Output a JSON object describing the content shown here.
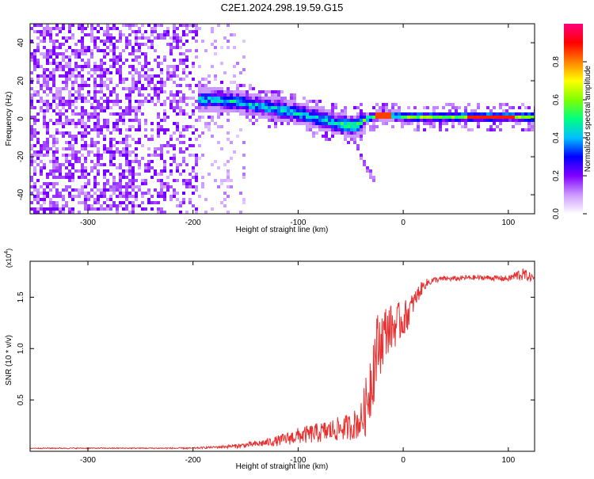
{
  "title": "C2E1.2024.298.19.59.G15",
  "chart_data": [
    {
      "type": "heatmap",
      "xlabel": "Height of straight line (km)",
      "ylabel": "Frequency (Hz)",
      "xlim": [
        -355,
        125
      ],
      "ylim": [
        -50,
        50
      ],
      "xticks": [
        -300,
        -200,
        -100,
        0,
        100
      ],
      "yticks": [
        -40,
        -20,
        0,
        20,
        40
      ],
      "colorbar": {
        "label": "Normalized spectral amplitude",
        "range": [
          0,
          1
        ],
        "ticks": [
          0.0,
          0.2,
          0.4,
          0.6,
          0.8
        ],
        "tick_labels": [
          "0.0",
          "0.2",
          "0.4",
          "0.6",
          "0.8"
        ],
        "colormap": [
          "#ffffff",
          "#cc99ff",
          "#8000ff",
          "#0000ff",
          "#00c0ff",
          "#00ff80",
          "#80ff00",
          "#ffff00",
          "#ff8000",
          "#ff0000",
          "#ff0080"
        ]
      },
      "ridge": {
        "x": [
          -195,
          -175,
          -160,
          -140,
          -120,
          -100,
          -80,
          -60,
          -45,
          -35,
          -20,
          0,
          50,
          100,
          125
        ],
        "y": [
          10,
          10,
          9,
          7,
          5,
          3,
          0,
          -3,
          -4,
          0,
          2,
          1,
          1,
          1,
          1
        ]
      },
      "branch": {
        "x": [
          -45,
          -40,
          -35,
          -30,
          -25
        ],
        "y": [
          -12,
          -20,
          -26,
          -30,
          -34
        ]
      }
    },
    {
      "type": "line",
      "xlabel": "Height of straight line (km)",
      "ylabel": "SNR (10 * v/v)",
      "scale_label": "(x10",
      "scale_exp": "4",
      "scale_close": ")",
      "xlim": [
        -355,
        125
      ],
      "ylim": [
        0,
        1.85
      ],
      "xticks": [
        -300,
        -200,
        -100,
        0,
        100
      ],
      "yticks": [
        0.5,
        1.0,
        1.5
      ],
      "ytick_labels": [
        "0.5",
        "1.0",
        "1.5"
      ],
      "series": [
        {
          "color": "#e83030",
          "x": [
            -355,
            -300,
            -250,
            -200,
            -180,
            -160,
            -140,
            -120,
            -100,
            -80,
            -60,
            -50,
            -40,
            -35,
            -30,
            -25,
            -20,
            -15,
            -10,
            -5,
            0,
            5,
            10,
            15,
            20,
            25,
            30,
            40,
            50,
            60,
            80,
            100,
            110,
            115,
            125
          ],
          "y": [
            0.03,
            0.03,
            0.03,
            0.03,
            0.04,
            0.05,
            0.07,
            0.1,
            0.15,
            0.18,
            0.22,
            0.24,
            0.3,
            0.45,
            0.75,
            1.0,
            1.1,
            1.2,
            1.2,
            1.25,
            1.28,
            1.35,
            1.45,
            1.55,
            1.62,
            1.65,
            1.67,
            1.68,
            1.68,
            1.69,
            1.69,
            1.68,
            1.72,
            1.72,
            1.68
          ],
          "noise": [
            0.005,
            0.005,
            0.005,
            0.008,
            0.01,
            0.02,
            0.03,
            0.05,
            0.08,
            0.1,
            0.12,
            0.13,
            0.18,
            0.3,
            0.4,
            0.35,
            0.3,
            0.25,
            0.22,
            0.2,
            0.18,
            0.15,
            0.1,
            0.08,
            0.05,
            0.04,
            0.03,
            0.025,
            0.025,
            0.025,
            0.025,
            0.03,
            0.06,
            0.06,
            0.03
          ]
        }
      ]
    }
  ]
}
